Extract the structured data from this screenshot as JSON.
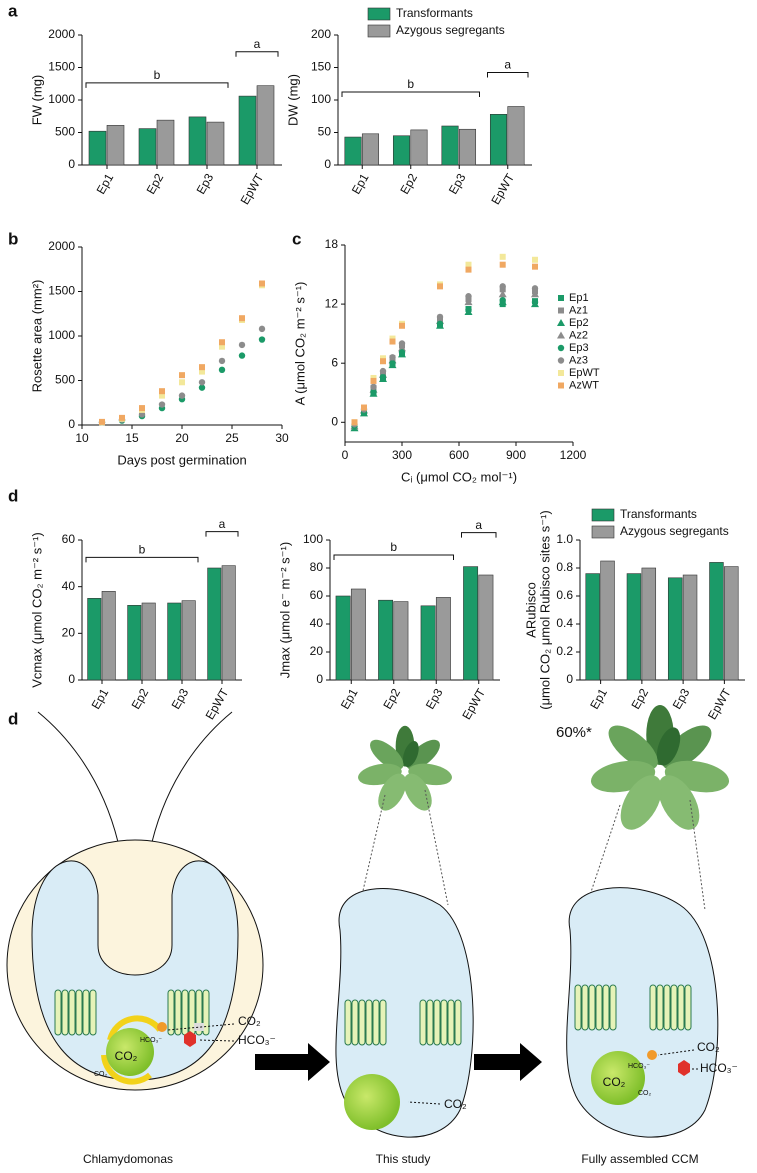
{
  "panel_labels": [
    "a",
    "b",
    "c",
    "d",
    "d"
  ],
  "chart_data": [
    {
      "type": "bar",
      "ylabel": "FW (mg)",
      "categories": [
        "Ep1",
        "Ep2",
        "Ep3",
        "EpWT"
      ],
      "series": [
        {
          "color": "#1b9a68",
          "values": [
            520,
            560,
            740,
            1060
          ]
        },
        {
          "color": "#9a9a9a",
          "values": [
            610,
            690,
            660,
            1220
          ]
        }
      ],
      "ylim": [
        0,
        2000
      ],
      "yticks": [
        0,
        500,
        1000,
        1500,
        2000
      ],
      "annotations": [
        {
          "text": "b",
          "span": [
            "Ep1",
            "Ep3"
          ]
        },
        {
          "text": "a",
          "span": [
            "EpWT",
            "EpWT"
          ]
        }
      ]
    },
    {
      "type": "bar",
      "ylabel": "DW (mg)",
      "categories": [
        "Ep1",
        "Ep2",
        "Ep3",
        "EpWT"
      ],
      "series": [
        {
          "name": "Transformants",
          "color": "#1b9a68",
          "values": [
            43,
            45,
            60,
            78
          ]
        },
        {
          "name": "Azygous segregants",
          "color": "#9a9a9a",
          "values": [
            48,
            54,
            55,
            90
          ]
        }
      ],
      "ylim": [
        0,
        200
      ],
      "yticks": [
        0,
        50,
        100,
        150,
        200
      ],
      "legend": "top",
      "annotations": [
        {
          "text": "b",
          "span": [
            "Ep1",
            "Ep3"
          ]
        },
        {
          "text": "a",
          "span": [
            "EpWT",
            "EpWT"
          ]
        }
      ]
    },
    {
      "type": "scatter",
      "xlabel": "Days post germination",
      "ylabel": "Rosette area (mm²)",
      "x": [
        12,
        14,
        16,
        18,
        20,
        22,
        24,
        26,
        28
      ],
      "series": [
        {
          "color": "#1b9a68",
          "marker": "circle",
          "values": [
            30,
            50,
            100,
            190,
            290,
            420,
            620,
            780,
            960
          ]
        },
        {
          "color": "#8c8c8c",
          "marker": "circle",
          "values": [
            32,
            60,
            120,
            230,
            330,
            480,
            720,
            900,
            1080
          ]
        },
        {
          "color": "#f3e89a",
          "marker": "square",
          "values": [
            30,
            70,
            170,
            330,
            480,
            600,
            880,
            1180,
            1570
          ]
        },
        {
          "color": "#f0a862",
          "marker": "square",
          "values": [
            35,
            80,
            190,
            380,
            560,
            650,
            930,
            1200,
            1590
          ]
        }
      ],
      "xlim": [
        10,
        30
      ],
      "xticks": [
        10,
        15,
        20,
        25,
        30
      ],
      "ylim": [
        0,
        2000
      ],
      "yticks": [
        0,
        500,
        1000,
        1500,
        2000
      ]
    },
    {
      "type": "scatter",
      "xlabel": "Cᵢ (μmol CO₂ mol⁻¹)",
      "ylabel": "A (μmol CO₂ m⁻² s⁻¹)",
      "x": [
        50,
        100,
        150,
        200,
        250,
        300,
        500,
        650,
        830,
        1000
      ],
      "series": [
        {
          "name": "Ep1",
          "color": "#1b9a68",
          "marker": "square",
          "values": [
            -0.5,
            1,
            3,
            4.5,
            6,
            7,
            10,
            11.5,
            12,
            12.3
          ]
        },
        {
          "name": "Az1",
          "color": "#8c8c8c",
          "marker": "square",
          "values": [
            -0.3,
            1.3,
            3.5,
            5,
            6.5,
            7.8,
            10.5,
            12.5,
            13.5,
            13.3
          ]
        },
        {
          "name": "Ep2",
          "color": "#1b9a68",
          "marker": "triangle",
          "values": [
            -0.6,
            0.9,
            2.9,
            4.4,
            5.8,
            6.9,
            9.8,
            11.2,
            12.2,
            12
          ]
        },
        {
          "name": "Az2",
          "color": "#8c8c8c",
          "marker": "triangle",
          "values": [
            -0.4,
            1.2,
            3.3,
            4.8,
            6.3,
            7.5,
            10.3,
            12.2,
            13,
            13
          ]
        },
        {
          "name": "Ep3",
          "color": "#1b9a68",
          "marker": "circle",
          "values": [
            -0.4,
            1,
            3.1,
            4.6,
            6,
            7.1,
            10,
            11.4,
            12.4,
            12.2
          ]
        },
        {
          "name": "Az3",
          "color": "#8c8c8c",
          "marker": "circle",
          "values": [
            -0.2,
            1.3,
            3.6,
            5.2,
            6.6,
            8,
            10.7,
            12.8,
            13.8,
            13.6
          ]
        },
        {
          "name": "EpWT",
          "color": "#f3e89a",
          "marker": "square",
          "values": [
            0,
            1.5,
            4.5,
            6.5,
            8.5,
            10,
            14,
            16,
            16.8,
            16.5
          ]
        },
        {
          "name": "AzWT",
          "color": "#f0a862",
          "marker": "square",
          "values": [
            0,
            1.5,
            4.2,
            6.2,
            8.2,
            9.8,
            13.8,
            15.5,
            16,
            15.8
          ]
        }
      ],
      "xlim": [
        0,
        1200
      ],
      "xticks": [
        0,
        300,
        600,
        900,
        1200
      ],
      "ylim": [
        -2,
        18
      ],
      "yticks": [
        0,
        6,
        12,
        18
      ],
      "legend": "right"
    },
    {
      "type": "bar",
      "ylabel": "Vcmax (μmol CO₂ m⁻² s⁻¹)",
      "categories": [
        "Ep1",
        "Ep2",
        "Ep3",
        "EpWT"
      ],
      "series": [
        {
          "color": "#1b9a68",
          "values": [
            35,
            32,
            33,
            48
          ]
        },
        {
          "color": "#9a9a9a",
          "values": [
            38,
            33,
            34,
            49
          ]
        }
      ],
      "ylim": [
        0,
        60
      ],
      "yticks": [
        0,
        20,
        40,
        60
      ],
      "annotations": [
        {
          "text": "b",
          "span": [
            "Ep1",
            "Ep3"
          ]
        },
        {
          "text": "a",
          "span": [
            "EpWT",
            "EpWT"
          ]
        }
      ]
    },
    {
      "type": "bar",
      "ylabel": "Jmax (μmol e⁻ m⁻² s⁻¹)",
      "categories": [
        "Ep1",
        "Ep2",
        "Ep3",
        "EpWT"
      ],
      "series": [
        {
          "color": "#1b9a68",
          "values": [
            60,
            57,
            53,
            81
          ]
        },
        {
          "color": "#9a9a9a",
          "values": [
            65,
            56,
            59,
            75
          ]
        }
      ],
      "ylim": [
        0,
        100
      ],
      "yticks": [
        0,
        20,
        40,
        60,
        80,
        100
      ],
      "annotations": [
        {
          "text": "b",
          "span": [
            "Ep1",
            "Ep3"
          ]
        },
        {
          "text": "a",
          "span": [
            "EpWT",
            "EpWT"
          ]
        }
      ]
    },
    {
      "type": "bar",
      "ylabel": [
        "ARubisco",
        "(μmol CO₂ μmol Rubisco sites s⁻¹)"
      ],
      "categories": [
        "Ep1",
        "Ep2",
        "Ep3",
        "EpWT"
      ],
      "series": [
        {
          "name": "Transformants",
          "color": "#1b9a68",
          "values": [
            0.76,
            0.76,
            0.73,
            0.84
          ]
        },
        {
          "name": "Azygous segregants",
          "color": "#9a9a9a",
          "values": [
            0.85,
            0.8,
            0.75,
            0.81
          ]
        }
      ],
      "ylim": [
        0,
        1
      ],
      "yticks": [
        0,
        0.2,
        0.4,
        0.6,
        0.8,
        {
          "value": 1,
          "label": "1.0"
        }
      ],
      "legend": "top"
    }
  ],
  "diagram": {
    "panels": [
      {
        "caption": "Chlamydomonas",
        "pyrenoid": "CO₂",
        "inner_hco3": "HCO₃⁻",
        "inner_co2": "CO₂",
        "co2": "CO₂",
        "hco3": "HCO₃⁻"
      },
      {
        "caption": "This study",
        "co2": "CO₂"
      },
      {
        "caption": "Fully assembled CCM",
        "gain": "60%*",
        "pyrenoid": "CO₂",
        "inner_hco3": "HCO₃⁻",
        "inner_co2": "CO₂",
        "co2": "CO₂",
        "hco3": "HCO₃⁻"
      }
    ]
  }
}
